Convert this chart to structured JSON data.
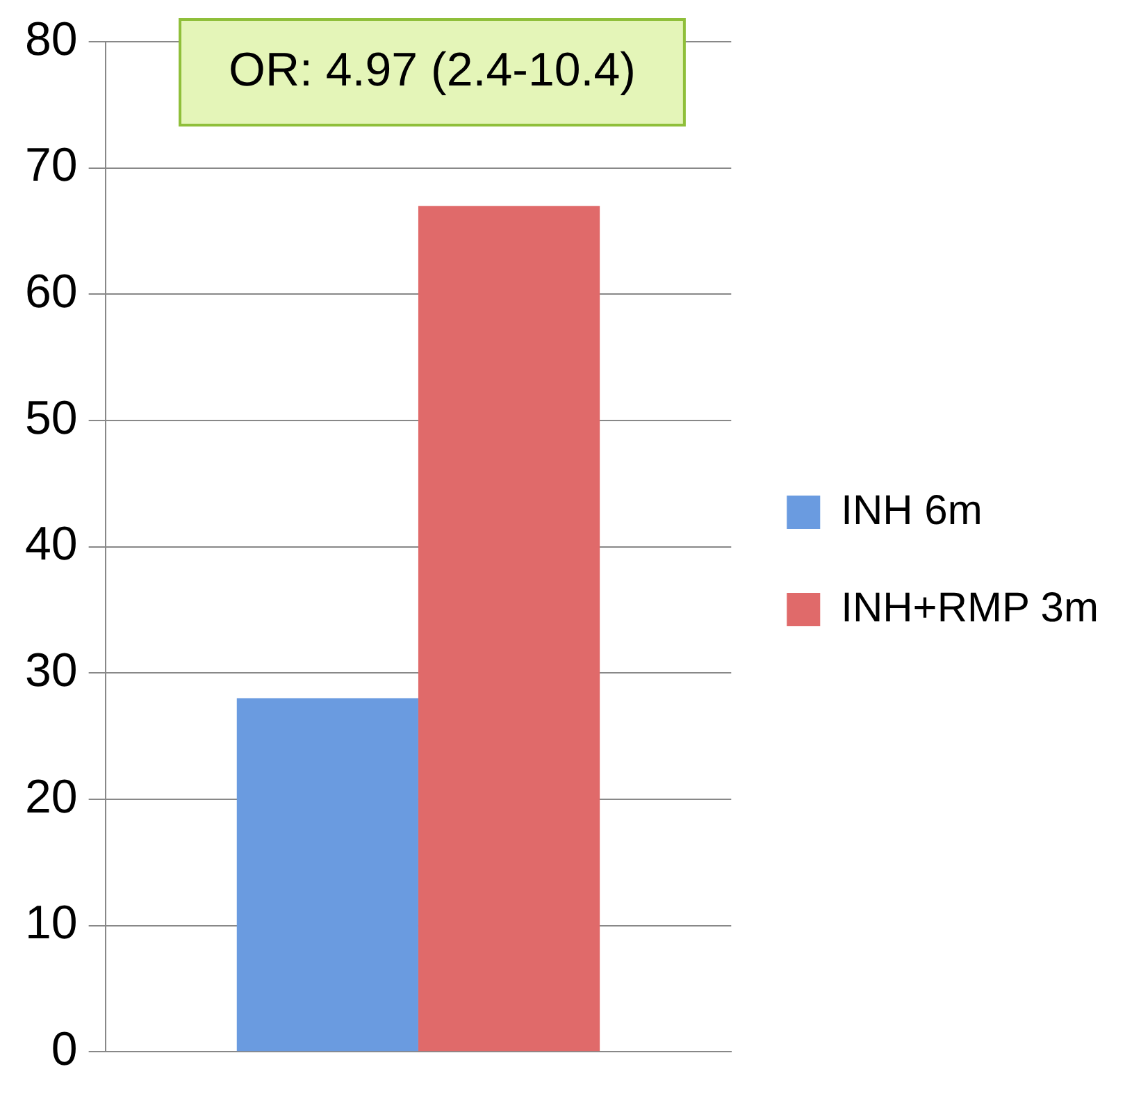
{
  "chart_data": {
    "type": "bar",
    "categories": [
      null
    ],
    "series": [
      {
        "name": "INH 6m",
        "color": "#6a9be0",
        "values": [
          28
        ]
      },
      {
        "name": "INH+RMP 3m",
        "color": "#e06a6a",
        "values": [
          67
        ]
      }
    ],
    "ylim": [
      0,
      80
    ],
    "yticks": [
      0,
      10,
      20,
      30,
      40,
      50,
      60,
      70,
      80
    ],
    "grid": "y",
    "legend": "right",
    "annotations": [
      "OR: 4.97 (2.4-10.4)"
    ]
  }
}
